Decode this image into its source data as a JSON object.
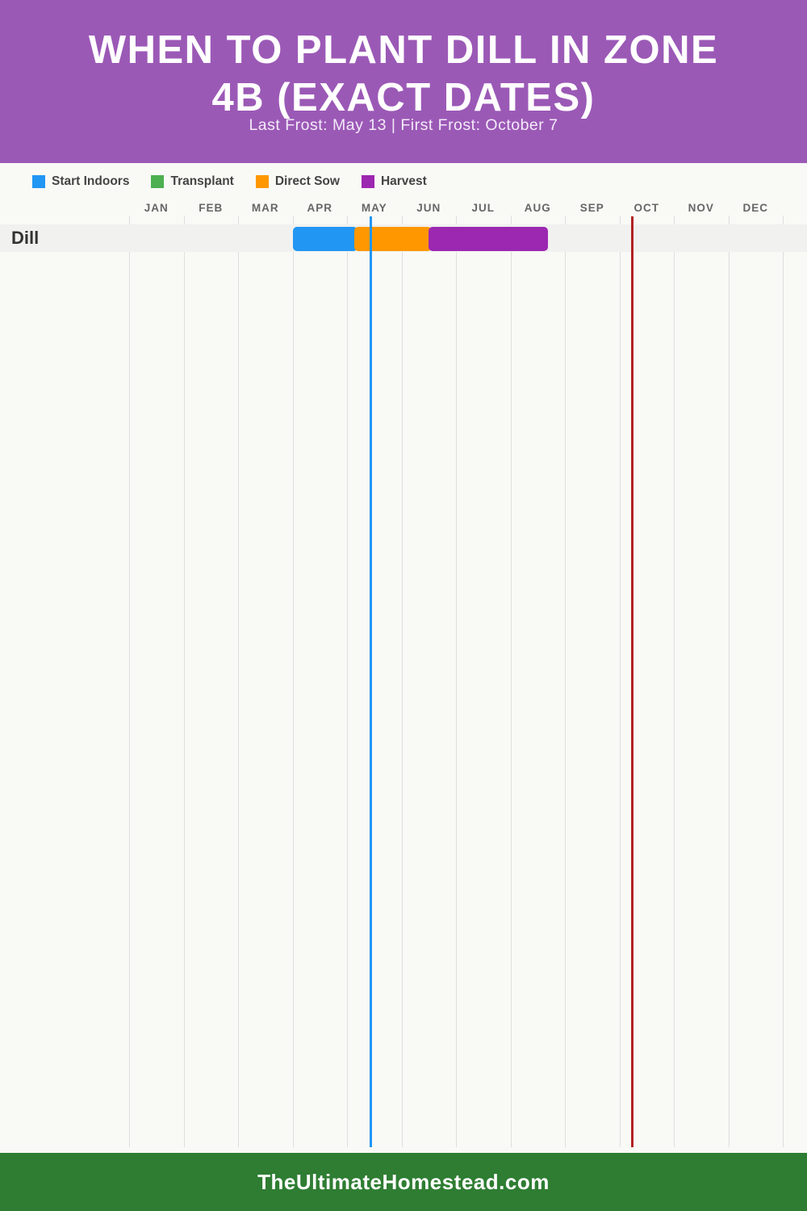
{
  "header": {
    "title_line1": "WHEN TO PLANT DILL IN ZONE",
    "title_line2": "4B (EXACT DATES)",
    "subtitle": "Last Frost: May 13 | First Frost: October 7"
  },
  "legend": [
    {
      "id": "start-indoors",
      "label": "Start Indoors",
      "color": "#2196f3"
    },
    {
      "id": "transplant",
      "label": "Transplant",
      "color": "#4caf50"
    },
    {
      "id": "direct-sow",
      "label": "Direct Sow",
      "color": "#ff9800"
    },
    {
      "id": "harvest",
      "label": "Harvest",
      "color": "#9c27b0"
    }
  ],
  "chart_data": {
    "type": "gantt-timeline",
    "categories": [
      "JAN",
      "FEB",
      "MAR",
      "APR",
      "MAY",
      "JUN",
      "JUL",
      "AUG",
      "SEP",
      "OCT",
      "NOV",
      "DEC"
    ],
    "rows": [
      {
        "label": "Dill",
        "bars": [
          {
            "series": "Start Indoors",
            "color": "#2196f3",
            "start": "Apr 1",
            "end": "May 6",
            "start_pos": 3.0,
            "end_pos": 4.19
          },
          {
            "series": "Direct Sow",
            "color": "#ff9800",
            "start": "May 6",
            "end": "Jun 17",
            "start_pos": 4.19,
            "end_pos": 5.56
          },
          {
            "series": "Harvest",
            "color": "#9c27b0",
            "start": "Jun 17",
            "end": "Aug 21",
            "start_pos": 5.56,
            "end_pos": 7.69
          }
        ]
      }
    ],
    "markers": [
      {
        "name": "last-frost",
        "date": "May 13",
        "color": "#2196f3",
        "pos": 4.43
      },
      {
        "name": "first-frost",
        "date": "October 7",
        "color": "#b22222",
        "pos": 9.23
      }
    ],
    "axis_range_months": 12,
    "grid": true,
    "legend_position": "top-left"
  },
  "footer": {
    "site": "TheUltimateHomestead.com"
  }
}
